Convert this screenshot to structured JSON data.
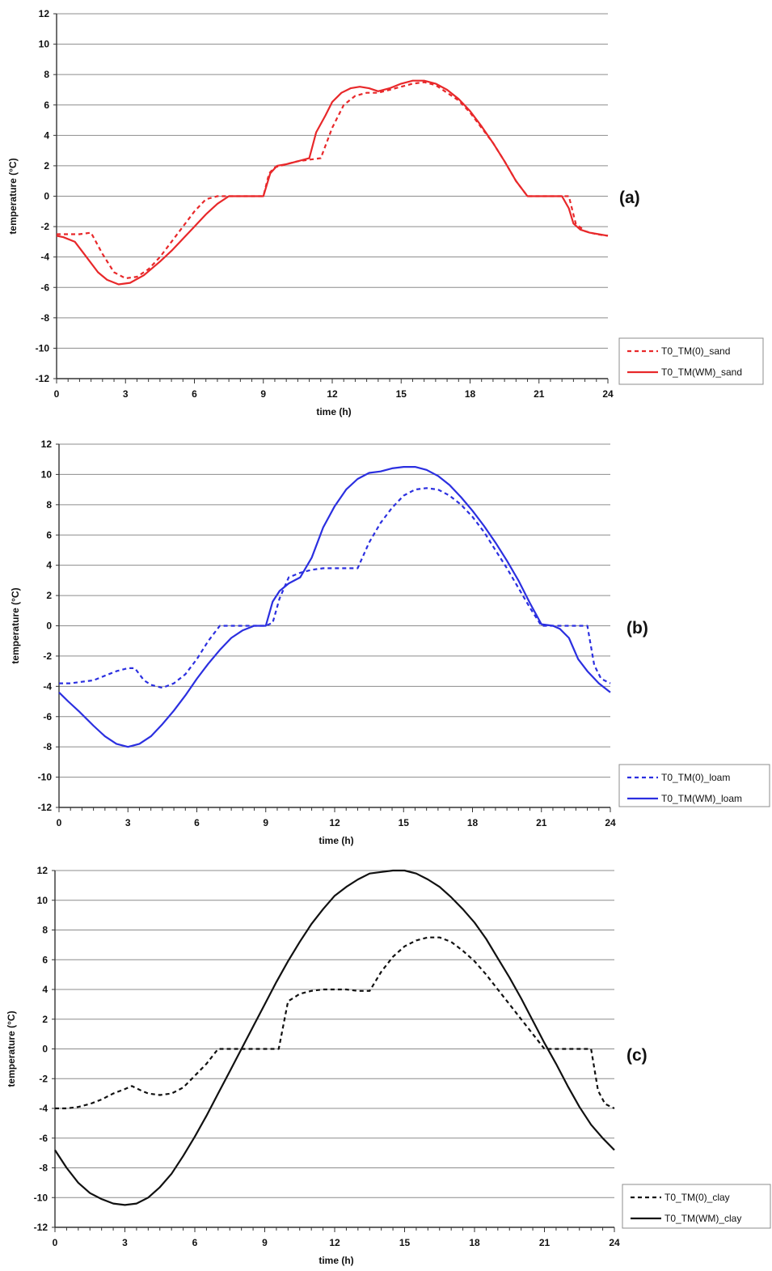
{
  "chart_data": [
    {
      "type": "line",
      "panel_label": "(a)",
      "xlabel": "time (h)",
      "ylabel": "temperature (°C)",
      "xlim": [
        0,
        24
      ],
      "ylim": [
        -12,
        12
      ],
      "xticks": [
        "0",
        "3",
        "6",
        "9",
        "12",
        "15",
        "18",
        "21",
        "24"
      ],
      "yticks": [
        "12",
        "10",
        "8",
        "6",
        "4",
        "2",
        "0",
        "-2",
        "-4",
        "-6",
        "-8",
        "-10",
        "-12"
      ],
      "grid": true,
      "legend": "right",
      "colors": {
        "accent": "#e8282a"
      },
      "series": [
        {
          "name": "T0_TM(0)_sand",
          "style": "dashed",
          "color": "#e8282a",
          "x": [
            0,
            0.5,
            1,
            1.5,
            2,
            2.5,
            3,
            3.5,
            4,
            4.5,
            5,
            5.5,
            6,
            6.5,
            7,
            7.5,
            8,
            8.5,
            9,
            9.25,
            9.5,
            10,
            10.5,
            11,
            11.5,
            12,
            12.5,
            13,
            13.5,
            14,
            14.5,
            15,
            15.5,
            16,
            16.5,
            17,
            17.5,
            18,
            18.5,
            19,
            19.5,
            20,
            20.5,
            21,
            21.5,
            22,
            22.3,
            22.6,
            23,
            23.5,
            24
          ],
          "y": [
            -2.5,
            -2.5,
            -2.5,
            -2.4,
            -3.8,
            -5.0,
            -5.4,
            -5.3,
            -4.8,
            -4.0,
            -3.0,
            -2.0,
            -1.0,
            -0.2,
            0.0,
            0.0,
            0.0,
            0.0,
            0.0,
            1.5,
            1.9,
            2.1,
            2.3,
            2.4,
            2.5,
            4.5,
            6.0,
            6.6,
            6.8,
            6.8,
            7.0,
            7.2,
            7.4,
            7.5,
            7.3,
            6.8,
            6.3,
            5.5,
            4.5,
            3.5,
            2.3,
            1.0,
            0.0,
            0.0,
            0.0,
            0.0,
            0.0,
            -1.8,
            -2.3,
            -2.5,
            -2.6
          ]
        },
        {
          "name": "T0_TM(WM)_sand",
          "style": "solid",
          "color": "#e8282a",
          "x": [
            0,
            0.3,
            0.8,
            1.2,
            1.8,
            2.2,
            2.7,
            3.2,
            3.8,
            4.5,
            5,
            5.5,
            6,
            6.5,
            7,
            7.5,
            8,
            8.5,
            9,
            9.3,
            9.6,
            10,
            10.5,
            11,
            11.3,
            11.7,
            12,
            12.4,
            12.8,
            13.2,
            13.6,
            14,
            14.5,
            15,
            15.5,
            16,
            16.5,
            17,
            17.5,
            18,
            18.5,
            19,
            19.5,
            20,
            20.5,
            21,
            21.5,
            22,
            22.3,
            22.5,
            22.8,
            23.2,
            23.6,
            24
          ],
          "y": [
            -2.6,
            -2.7,
            -3.0,
            -3.8,
            -5.0,
            -5.5,
            -5.8,
            -5.7,
            -5.2,
            -4.3,
            -3.6,
            -2.8,
            -2.0,
            -1.2,
            -0.5,
            0.0,
            0.0,
            0.0,
            0.0,
            1.5,
            2.0,
            2.1,
            2.3,
            2.5,
            4.2,
            5.3,
            6.2,
            6.8,
            7.1,
            7.2,
            7.1,
            6.9,
            7.1,
            7.4,
            7.6,
            7.6,
            7.4,
            7.0,
            6.4,
            5.6,
            4.6,
            3.5,
            2.3,
            1.0,
            0.0,
            0.0,
            0.0,
            0.0,
            -0.8,
            -1.8,
            -2.2,
            -2.4,
            -2.5,
            -2.6
          ]
        }
      ]
    },
    {
      "type": "line",
      "panel_label": "(b)",
      "xlabel": "time (h)",
      "ylabel": "temperature (°C)",
      "xlim": [
        0,
        24
      ],
      "ylim": [
        -12,
        12
      ],
      "xticks": [
        "0",
        "3",
        "6",
        "9",
        "12",
        "15",
        "18",
        "21",
        "24"
      ],
      "yticks": [
        "12",
        "10",
        "8",
        "6",
        "4",
        "2",
        "0",
        "-2",
        "-4",
        "-6",
        "-8",
        "-10",
        "-12"
      ],
      "grid": true,
      "legend": "right",
      "colors": {
        "accent": "#2b2fe0"
      },
      "series": [
        {
          "name": "T0_TM(0)_loam",
          "style": "dashed",
          "color": "#2b2fe0",
          "x": [
            0,
            0.5,
            1,
            1.5,
            2,
            2.5,
            3,
            3.3,
            3.7,
            4,
            4.5,
            5,
            5.5,
            6,
            6.5,
            7,
            7.5,
            8,
            8.5,
            9,
            9.3,
            9.6,
            10,
            10.5,
            11,
            11.5,
            12,
            12.5,
            13,
            13.5,
            14,
            14.5,
            15,
            15.5,
            16,
            16.5,
            17,
            17.5,
            18,
            18.5,
            19,
            19.5,
            20,
            20.5,
            21,
            21.5,
            22,
            22.5,
            23,
            23.3,
            23.6,
            24
          ],
          "y": [
            -3.8,
            -3.8,
            -3.7,
            -3.6,
            -3.3,
            -3.0,
            -2.8,
            -2.8,
            -3.6,
            -3.9,
            -4.1,
            -3.8,
            -3.2,
            -2.2,
            -1.0,
            0.0,
            0.0,
            0.0,
            0.0,
            0.0,
            0.2,
            1.8,
            3.2,
            3.5,
            3.7,
            3.8,
            3.8,
            3.8,
            3.8,
            5.5,
            6.8,
            7.8,
            8.6,
            9.0,
            9.1,
            9.0,
            8.6,
            8.0,
            7.2,
            6.2,
            5.0,
            3.8,
            2.5,
            1.2,
            0.0,
            0.0,
            0.0,
            0.0,
            0.0,
            -2.6,
            -3.5,
            -3.8
          ]
        },
        {
          "name": "T0_TM(WM)_loam",
          "style": "solid",
          "color": "#2b2fe0",
          "x": [
            0,
            0.4,
            0.9,
            1.5,
            2,
            2.5,
            3,
            3.5,
            4,
            4.5,
            5,
            5.5,
            6,
            6.5,
            7,
            7.5,
            8,
            8.5,
            9,
            9.3,
            9.6,
            10,
            10.5,
            11,
            11.5,
            12,
            12.5,
            13,
            13.5,
            14,
            14.5,
            15,
            15.5,
            16,
            16.5,
            17,
            17.5,
            18,
            18.5,
            19,
            19.5,
            20,
            20.5,
            21,
            21.5,
            21.8,
            22.2,
            22.6,
            23,
            23.5,
            24
          ],
          "y": [
            -4.4,
            -5.0,
            -5.7,
            -6.6,
            -7.3,
            -7.8,
            -8.0,
            -7.8,
            -7.3,
            -6.5,
            -5.6,
            -4.6,
            -3.5,
            -2.5,
            -1.6,
            -0.8,
            -0.3,
            0.0,
            0.0,
            1.6,
            2.3,
            2.8,
            3.2,
            4.5,
            6.5,
            7.9,
            9.0,
            9.7,
            10.1,
            10.2,
            10.4,
            10.5,
            10.5,
            10.3,
            9.9,
            9.3,
            8.5,
            7.6,
            6.6,
            5.5,
            4.3,
            3.0,
            1.5,
            0.1,
            0.0,
            -0.2,
            -0.8,
            -2.2,
            -3.0,
            -3.8,
            -4.4
          ]
        }
      ]
    },
    {
      "type": "line",
      "panel_label": "(c)",
      "xlabel": "time (h)",
      "ylabel": "temperature (°C)",
      "xlim": [
        0,
        24
      ],
      "ylim": [
        -12,
        12
      ],
      "xticks": [
        "0",
        "3",
        "6",
        "9",
        "12",
        "15",
        "18",
        "21",
        "24"
      ],
      "yticks": [
        "12",
        "10",
        "8",
        "6",
        "4",
        "2",
        "0",
        "-2",
        "-4",
        "-6",
        "-8",
        "-10",
        "-12"
      ],
      "grid": true,
      "legend": "right",
      "colors": {
        "accent": "#111111"
      },
      "series": [
        {
          "name": "T0_TM(0)_clay",
          "style": "dashed",
          "color": "#111111",
          "x": [
            0,
            0.5,
            1,
            1.5,
            2,
            2.5,
            3,
            3.3,
            3.7,
            4,
            4.5,
            5,
            5.5,
            6,
            6.5,
            7,
            7.5,
            8,
            8.5,
            9,
            9.3,
            9.6,
            10,
            10.5,
            11,
            11.5,
            12,
            12.5,
            13,
            13.5,
            14,
            14.5,
            15,
            15.5,
            16,
            16.5,
            17,
            17.5,
            18,
            18.5,
            19,
            19.5,
            20,
            20.5,
            21,
            21.5,
            22,
            22.5,
            23,
            23.3,
            23.6,
            24
          ],
          "y": [
            -4.0,
            -4.0,
            -3.9,
            -3.7,
            -3.4,
            -3.0,
            -2.7,
            -2.5,
            -2.8,
            -3.0,
            -3.1,
            -3.0,
            -2.6,
            -1.8,
            -1.0,
            0.0,
            0.0,
            0.0,
            0.0,
            0.0,
            0.0,
            0.0,
            3.2,
            3.7,
            3.9,
            4.0,
            4.0,
            4.0,
            3.9,
            3.9,
            5.2,
            6.2,
            6.9,
            7.3,
            7.5,
            7.5,
            7.2,
            6.6,
            5.9,
            5.0,
            4.0,
            3.0,
            2.0,
            1.0,
            0.0,
            0.0,
            0.0,
            0.0,
            0.0,
            -2.8,
            -3.7,
            -4.0
          ]
        },
        {
          "name": "T0_TM(WM)_clay",
          "style": "solid",
          "color": "#111111",
          "x": [
            0,
            0.5,
            1,
            1.5,
            2,
            2.5,
            3,
            3.5,
            4,
            4.5,
            5,
            5.5,
            6,
            6.5,
            7,
            7.5,
            8,
            8.5,
            9,
            9.5,
            10,
            10.5,
            11,
            11.5,
            12,
            12.5,
            13,
            13.5,
            14,
            14.5,
            15,
            15.5,
            16,
            16.5,
            17,
            17.5,
            18,
            18.5,
            19,
            19.5,
            20,
            20.5,
            21,
            21.5,
            22,
            22.5,
            23,
            23.5,
            24
          ],
          "y": [
            -6.8,
            -8.0,
            -9.0,
            -9.7,
            -10.1,
            -10.4,
            -10.5,
            -10.4,
            -10.0,
            -9.3,
            -8.4,
            -7.2,
            -5.9,
            -4.5,
            -3.0,
            -1.5,
            0.0,
            1.5,
            3.0,
            4.5,
            5.9,
            7.2,
            8.4,
            9.4,
            10.3,
            10.9,
            11.4,
            11.8,
            11.9,
            12.0,
            12.0,
            11.8,
            11.4,
            10.9,
            10.2,
            9.4,
            8.5,
            7.4,
            6.1,
            4.8,
            3.4,
            1.9,
            0.4,
            -1.0,
            -2.5,
            -3.9,
            -5.1,
            -6.0,
            -6.8
          ]
        }
      ]
    }
  ]
}
